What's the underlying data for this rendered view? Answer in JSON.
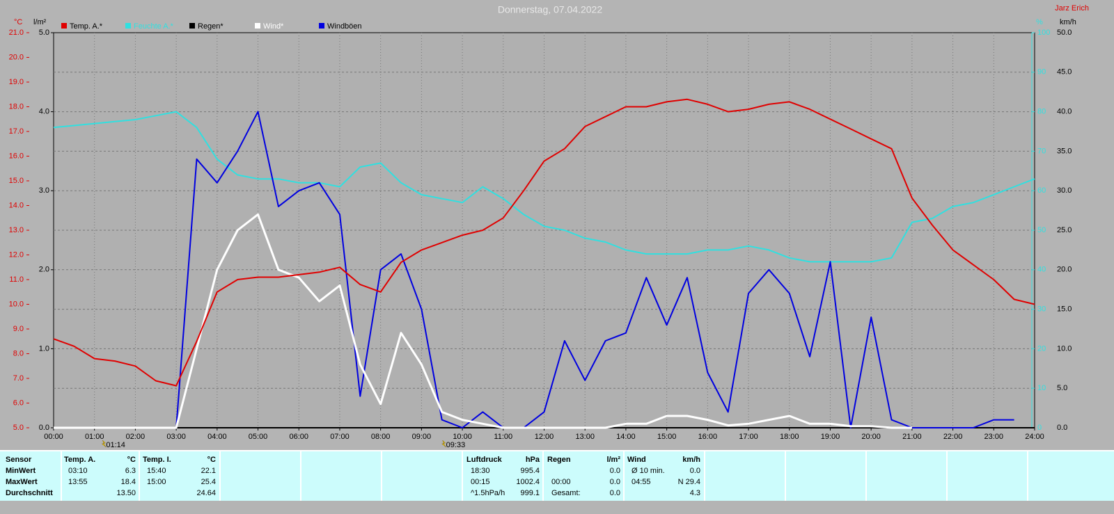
{
  "chart_data": {
    "type": "line",
    "title": "Donnerstag, 07.04.2022",
    "author": "Jarz Erich",
    "x": [
      0,
      0.5,
      1,
      1.5,
      2,
      2.5,
      3,
      3.5,
      4,
      4.5,
      5,
      5.5,
      6,
      6.5,
      7,
      7.5,
      8,
      8.5,
      9,
      9.5,
      10,
      10.5,
      11,
      11.5,
      12,
      12.5,
      13,
      13.5,
      14,
      14.5,
      15,
      15.5,
      16,
      16.5,
      17,
      17.5,
      18,
      18.5,
      19,
      19.5,
      20,
      20.5,
      21,
      21.5,
      22,
      22.5,
      23,
      23.5,
      24
    ],
    "xlim": [
      0,
      24
    ],
    "xticks": [
      {
        "value": 0,
        "label": "00:00"
      },
      {
        "value": 1,
        "label": "01:00"
      },
      {
        "value": 2,
        "label": "02:00"
      },
      {
        "value": 3,
        "label": "03:00"
      },
      {
        "value": 4,
        "label": "04:00"
      },
      {
        "value": 5,
        "label": "05:00"
      },
      {
        "value": 6,
        "label": "06:00"
      },
      {
        "value": 7,
        "label": "07:00"
      },
      {
        "value": 8,
        "label": "08:00"
      },
      {
        "value": 9,
        "label": "09:00"
      },
      {
        "value": 10,
        "label": "10:00"
      },
      {
        "value": 11,
        "label": "11:00"
      },
      {
        "value": 12,
        "label": "12:00"
      },
      {
        "value": 13,
        "label": "13:00"
      },
      {
        "value": 14,
        "label": "14:00"
      },
      {
        "value": 15,
        "label": "15:00"
      },
      {
        "value": 16,
        "label": "16:00"
      },
      {
        "value": 17,
        "label": "17:00"
      },
      {
        "value": 18,
        "label": "18:00"
      },
      {
        "value": 19,
        "label": "19:00"
      },
      {
        "value": 20,
        "label": "20:00"
      },
      {
        "value": 21,
        "label": "21:00"
      },
      {
        "value": 22,
        "label": "22:00"
      },
      {
        "value": 23,
        "label": "23:00"
      },
      {
        "value": 24,
        "label": "24:00"
      }
    ],
    "ylabel": "°C",
    "ylim": [
      5,
      21
    ],
    "yticks": [
      {
        "value": 5,
        "label": "5.0"
      },
      {
        "value": 6,
        "label": "6.0"
      },
      {
        "value": 7,
        "label": "7.0"
      },
      {
        "value": 8,
        "label": "8.0"
      },
      {
        "value": 9,
        "label": "9.0"
      },
      {
        "value": 10,
        "label": "10.0"
      },
      {
        "value": 11,
        "label": "11.0"
      },
      {
        "value": 12,
        "label": "12.0"
      },
      {
        "value": 13,
        "label": "13.0"
      },
      {
        "value": 14,
        "label": "14.0"
      },
      {
        "value": 15,
        "label": "15.0"
      },
      {
        "value": 16,
        "label": "16.0"
      },
      {
        "value": 17,
        "label": "17.0"
      },
      {
        "value": 18,
        "label": "18.0"
      },
      {
        "value": 19,
        "label": "19.0"
      },
      {
        "value": 20,
        "label": "20.0"
      },
      {
        "value": 21,
        "label": "21.0"
      }
    ],
    "y3label": "l/m²",
    "y3lim": [
      0,
      5
    ],
    "y3ticks": [
      {
        "value": 0,
        "label": "0.0"
      },
      {
        "value": 1,
        "label": "1.0"
      },
      {
        "value": 2,
        "label": "2.0"
      },
      {
        "value": 3,
        "label": "3.0"
      },
      {
        "value": 4,
        "label": "4.0"
      },
      {
        "value": 5,
        "label": "5.0"
      }
    ],
    "y2label": "%",
    "y2lim": [
      0,
      100
    ],
    "y2ticks": [
      0,
      10,
      20,
      30,
      40,
      50,
      60,
      70,
      80,
      90,
      100
    ],
    "y4label": "km/h",
    "y4lim": [
      0,
      50
    ],
    "y4ticks": [
      {
        "value": 0,
        "label": "0.0"
      },
      {
        "value": 5,
        "label": "5.0"
      },
      {
        "value": 10,
        "label": "10.0"
      },
      {
        "value": 15,
        "label": "15.0"
      },
      {
        "value": 20,
        "label": "20.0"
      },
      {
        "value": 25,
        "label": "25.0"
      },
      {
        "value": 30,
        "label": "30.0"
      },
      {
        "value": 35,
        "label": "35.0"
      },
      {
        "value": 40,
        "label": "40.0"
      },
      {
        "value": 45,
        "label": "45.0"
      },
      {
        "value": 50,
        "label": "50.0"
      }
    ],
    "grid": true,
    "series": [
      {
        "name": "Temp. A.*",
        "color": "#e00000",
        "axis": "y",
        "values": [
          8.6,
          8.3,
          7.8,
          7.7,
          7.5,
          6.9,
          6.7,
          8.5,
          10.5,
          11.0,
          11.1,
          11.1,
          11.2,
          11.3,
          11.5,
          10.8,
          10.5,
          11.7,
          12.2,
          12.5,
          12.8,
          13.0,
          13.5,
          14.6,
          15.8,
          16.3,
          17.2,
          17.6,
          18.0,
          18.0,
          18.2,
          18.3,
          18.1,
          17.8,
          17.9,
          18.1,
          18.2,
          17.9,
          17.5,
          17.1,
          16.7,
          16.3,
          14.3,
          13.2,
          12.2,
          11.6,
          11.0,
          10.2,
          10.0
        ]
      },
      {
        "name": "Feuchte A.*",
        "color": "#30e0e0",
        "axis": "y2",
        "values": [
          76,
          76.5,
          77,
          77.5,
          78,
          79,
          80,
          76,
          68,
          64,
          63,
          63,
          62,
          62,
          61,
          66,
          67,
          62,
          59,
          58,
          57,
          61,
          58,
          54,
          51,
          50,
          48,
          47,
          45,
          44,
          44,
          44,
          45,
          45,
          46,
          45,
          43,
          42,
          42,
          42,
          42,
          43,
          52,
          53,
          56,
          57,
          59,
          61,
          63
        ]
      },
      {
        "name": "Regen*",
        "color": "#000000",
        "axis": "y3",
        "values": [
          0,
          0,
          0,
          0,
          0,
          0,
          0,
          0,
          0,
          0,
          0,
          0,
          0,
          0,
          0,
          0,
          0,
          0,
          0,
          0,
          0,
          0,
          0,
          0,
          0,
          0,
          0,
          0,
          0,
          0,
          0,
          0,
          0,
          0,
          0,
          0,
          0,
          0,
          0,
          0,
          0,
          0,
          0,
          0,
          0,
          0,
          0,
          0,
          0
        ]
      },
      {
        "name": "Wind*",
        "color": "#ffffff",
        "axis": "y4",
        "values": [
          0,
          0,
          0,
          0,
          0,
          0,
          0,
          10,
          20,
          25,
          27,
          20,
          19,
          16,
          18,
          8,
          3,
          12,
          8,
          2,
          1,
          0.5,
          0,
          0,
          0,
          0,
          0,
          0,
          0.5,
          0.5,
          1.5,
          1.5,
          1,
          0.3,
          0.5,
          1,
          1.5,
          0.5,
          0.5,
          0.2,
          0.2,
          0,
          0,
          null,
          null,
          null,
          null,
          null,
          null
        ]
      },
      {
        "name": "Windböen",
        "color": "#0000e0",
        "axis": "y4",
        "values": [
          0,
          0,
          0,
          0,
          0,
          0,
          0,
          34,
          31,
          35,
          40,
          28,
          30,
          31,
          27,
          4,
          20,
          22,
          15,
          1,
          0,
          2,
          0,
          0,
          2,
          11,
          6,
          11,
          12,
          19,
          13,
          19,
          7,
          2,
          17,
          20,
          17,
          9,
          21,
          0,
          14,
          1,
          0,
          0,
          0,
          0,
          1,
          1,
          null
        ]
      }
    ],
    "annotations": [
      {
        "x": 1.233,
        "label": "01:14"
      },
      {
        "x": 9.55,
        "label": "09:33"
      }
    ]
  },
  "table": {
    "row_labels": [
      "Sensor",
      "MinWert",
      "MaxWert",
      "Durchschnitt"
    ],
    "groups": [
      {
        "title": "Temp. A.",
        "unit": "°C",
        "rows": [
          {
            "time": "03:10",
            "value": "6.3"
          },
          {
            "time": "13:55",
            "value": "18.4"
          },
          {
            "value": "13.50"
          }
        ]
      },
      {
        "title": "Temp. I.",
        "unit": "°C",
        "rows": [
          {
            "time": "15:40",
            "value": "22.1"
          },
          {
            "time": "15:00",
            "value": "25.4"
          },
          {
            "value": "24.64"
          }
        ]
      },
      {
        "title": "Luftdruck",
        "unit": "hPa",
        "rows": [
          {
            "time": "18:30",
            "value": "995.4"
          },
          {
            "time": "00:15",
            "value": "1002.4"
          },
          {
            "time": "^1.5hPa/h",
            "value": "999.1"
          }
        ]
      },
      {
        "title": "Regen",
        "unit": "l/m²",
        "rows": [
          {
            "value": "0.0"
          },
          {
            "time": "00:00",
            "value": "0.0"
          },
          {
            "time": "Gesamt:",
            "value": "0.0"
          }
        ]
      },
      {
        "title": "Wind",
        "unit": "km/h",
        "rows": [
          {
            "time": "Ø 10 min.",
            "value": "0.0"
          },
          {
            "time": "04:55",
            "value": "N 29.4"
          },
          {
            "value": "4.3"
          }
        ]
      }
    ]
  }
}
